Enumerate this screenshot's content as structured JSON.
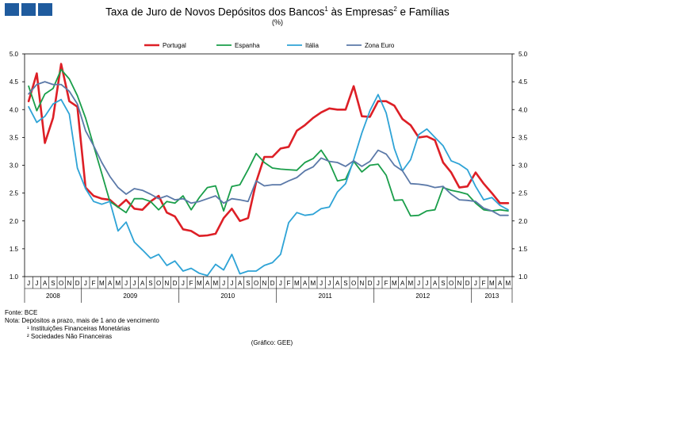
{
  "title": {
    "main": "Taxa de Juro de Novos Depósitos dos Bancos",
    "sup1": "1",
    "mid": " às Empresas",
    "sup2": "2",
    "end": " e Famílias"
  },
  "subtitle": "(%)",
  "notes": {
    "fonte": "Fonte: BCE",
    "nota": "Nota: Depósitos a prazo, mais de 1 ano de vencimento",
    "n1": "¹ Instituições Financeiras Monetárias",
    "n2": "² Sociedades Não Financeiras"
  },
  "credit": "(Gráfico: GEE)",
  "chart_data": {
    "type": "line",
    "title": "Taxa de Juro de Novos Depósitos dos Bancos às Empresas e Famílias",
    "ylabel": "(%)",
    "ylim": [
      1.0,
      5.0
    ],
    "yticks": [
      "1.0",
      "1.5",
      "2.0",
      "2.5",
      "3.0",
      "3.5",
      "4.0",
      "4.5",
      "5.0"
    ],
    "months": [
      "J",
      "J",
      "A",
      "S",
      "O",
      "N",
      "D",
      "J",
      "F",
      "M",
      "A",
      "M",
      "J",
      "J",
      "A",
      "S",
      "O",
      "N",
      "D",
      "J",
      "F",
      "M",
      "A",
      "M",
      "J",
      "J",
      "A",
      "S",
      "O",
      "N",
      "D",
      "J",
      "F",
      "M",
      "A",
      "M",
      "J",
      "J",
      "A",
      "S",
      "O",
      "N",
      "D",
      "J",
      "F",
      "M",
      "A",
      "M",
      "J",
      "J",
      "A",
      "S",
      "O",
      "N",
      "D",
      "J",
      "F",
      "M",
      "A",
      "M"
    ],
    "years": [
      {
        "label": "2008",
        "start": 0,
        "end": 7
      },
      {
        "label": "2009",
        "start": 7,
        "end": 19
      },
      {
        "label": "2010",
        "start": 19,
        "end": 31
      },
      {
        "label": "2011",
        "start": 31,
        "end": 43
      },
      {
        "label": "2012",
        "start": 43,
        "end": 55
      },
      {
        "label": "2013",
        "start": 55,
        "end": 60
      }
    ],
    "series": [
      {
        "name": "Portugal",
        "color": "#dd1f26",
        "values": [
          4.15,
          4.65,
          3.4,
          3.85,
          4.82,
          4.15,
          4.05,
          2.6,
          2.45,
          2.4,
          2.38,
          2.25,
          2.38,
          2.22,
          2.2,
          2.35,
          2.45,
          2.15,
          2.08,
          1.85,
          1.82,
          1.73,
          1.74,
          1.77,
          2.05,
          2.22,
          2.0,
          2.05,
          2.7,
          3.15,
          3.15,
          3.3,
          3.33,
          3.62,
          3.72,
          3.85,
          3.95,
          4.02,
          4.0,
          4.0,
          4.42,
          3.88,
          3.87,
          4.15,
          4.15,
          4.07,
          3.83,
          3.72,
          3.5,
          3.52,
          3.45,
          3.05,
          2.87,
          2.6,
          2.62,
          2.87,
          2.67,
          2.5,
          2.32,
          2.32
        ]
      },
      {
        "name": "Espanha",
        "color": "#1a9e4a",
        "values": [
          4.42,
          3.98,
          4.28,
          4.38,
          4.72,
          4.55,
          4.25,
          3.85,
          3.35,
          2.85,
          2.35,
          2.25,
          2.15,
          2.4,
          2.4,
          2.35,
          2.2,
          2.35,
          2.32,
          2.45,
          2.2,
          2.42,
          2.6,
          2.63,
          2.18,
          2.62,
          2.65,
          2.92,
          3.21,
          3.05,
          2.95,
          2.93,
          2.92,
          2.91,
          3.05,
          3.12,
          3.27,
          3.05,
          2.72,
          2.75,
          3.07,
          2.88,
          3.0,
          3.02,
          2.82,
          2.37,
          2.38,
          2.09,
          2.1,
          2.18,
          2.2,
          2.6,
          2.55,
          2.52,
          2.48,
          2.32,
          2.2,
          2.18,
          2.2,
          2.18
        ]
      },
      {
        "name": "Itália",
        "color": "#2ea3d6",
        "values": [
          4.05,
          3.77,
          3.88,
          4.1,
          4.18,
          3.92,
          2.95,
          2.58,
          2.35,
          2.3,
          2.35,
          1.82,
          1.98,
          1.62,
          1.48,
          1.33,
          1.4,
          1.2,
          1.28,
          1.1,
          1.15,
          1.06,
          1.02,
          1.22,
          1.12,
          1.4,
          1.05,
          1.1,
          1.1,
          1.2,
          1.25,
          1.4,
          1.97,
          2.15,
          2.1,
          2.12,
          2.22,
          2.25,
          2.52,
          2.67,
          3.1,
          3.58,
          3.98,
          4.27,
          3.94,
          3.3,
          2.9,
          3.1,
          3.55,
          3.65,
          3.5,
          3.35,
          3.08,
          3.02,
          2.92,
          2.62,
          2.38,
          2.42,
          2.28,
          2.2
        ]
      },
      {
        "name": "Zona Euro",
        "color": "#5b79a8",
        "values": [
          4.28,
          4.45,
          4.5,
          4.45,
          4.45,
          4.33,
          4.1,
          3.62,
          3.35,
          3.05,
          2.8,
          2.6,
          2.48,
          2.58,
          2.55,
          2.48,
          2.4,
          2.45,
          2.38,
          2.4,
          2.32,
          2.35,
          2.4,
          2.45,
          2.32,
          2.4,
          2.38,
          2.35,
          2.72,
          2.63,
          2.65,
          2.65,
          2.72,
          2.78,
          2.9,
          2.97,
          3.13,
          3.07,
          3.05,
          2.98,
          3.08,
          2.98,
          3.07,
          3.27,
          3.2,
          3.0,
          2.9,
          2.67,
          2.66,
          2.64,
          2.6,
          2.62,
          2.48,
          2.38,
          2.37,
          2.35,
          2.23,
          2.18,
          2.1,
          2.1
        ]
      }
    ]
  }
}
